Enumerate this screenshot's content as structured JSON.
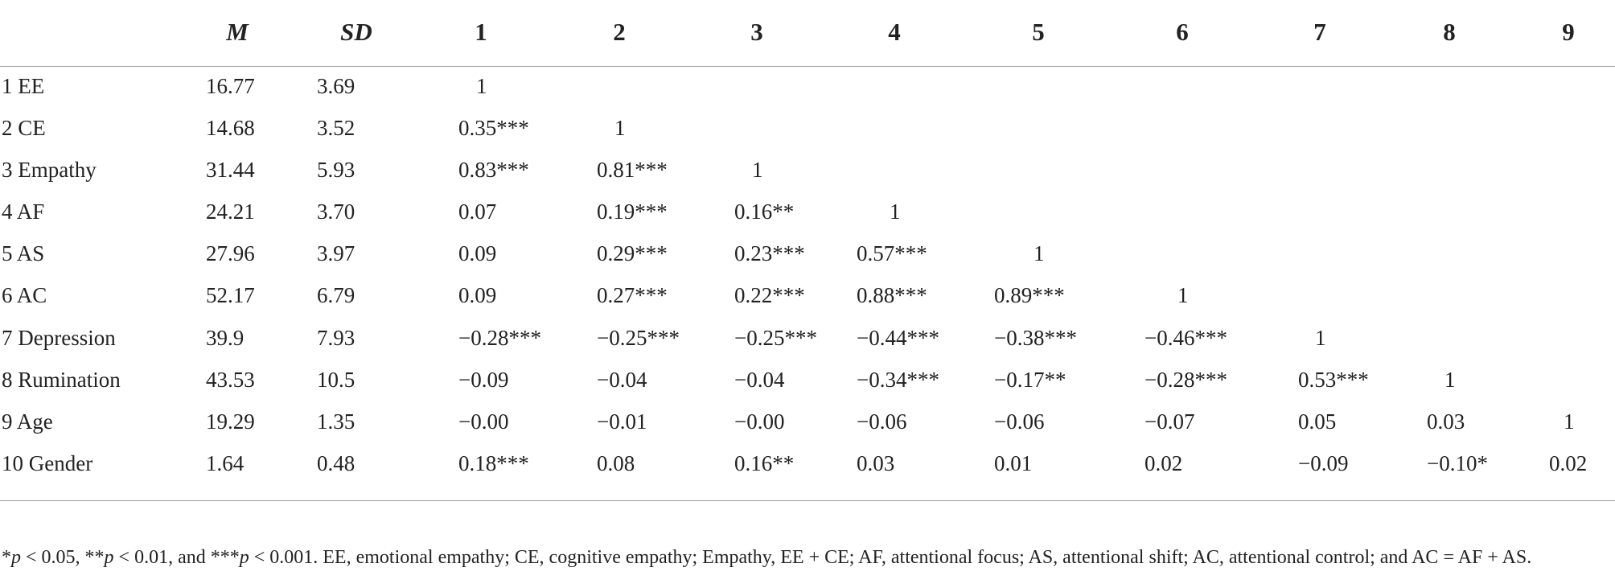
{
  "table": {
    "columns": [
      "M",
      "SD",
      "1",
      "2",
      "3",
      "4",
      "5",
      "6",
      "7",
      "8",
      "9"
    ],
    "rows": [
      {
        "label": "1 EE",
        "cells": [
          "16.77",
          "3.69",
          "1",
          "",
          "",
          "",
          "",
          "",
          "",
          "",
          ""
        ]
      },
      {
        "label": "2 CE",
        "cells": [
          "14.68",
          "3.52",
          "0.35***",
          "1",
          "",
          "",
          "",
          "",
          "",
          "",
          ""
        ]
      },
      {
        "label": "3 Empathy",
        "cells": [
          "31.44",
          "5.93",
          "0.83***",
          "0.81***",
          "1",
          "",
          "",
          "",
          "",
          "",
          ""
        ]
      },
      {
        "label": "4 AF",
        "cells": [
          "24.21",
          "3.70",
          "0.07",
          "0.19***",
          "0.16**",
          "1",
          "",
          "",
          "",
          "",
          ""
        ]
      },
      {
        "label": "5 AS",
        "cells": [
          "27.96",
          "3.97",
          "0.09",
          "0.29***",
          "0.23***",
          "0.57***",
          "1",
          "",
          "",
          "",
          ""
        ]
      },
      {
        "label": "6 AC",
        "cells": [
          "52.17",
          "6.79",
          "0.09",
          "0.27***",
          "0.22***",
          "0.88***",
          "0.89***",
          "1",
          "",
          "",
          ""
        ]
      },
      {
        "label": "7 Depression",
        "cells": [
          "39.9",
          "7.93",
          "−0.28***",
          "−0.25***",
          "−0.25***",
          "−0.44***",
          "−0.38***",
          "−0.46***",
          "1",
          "",
          ""
        ]
      },
      {
        "label": "8 Rumination",
        "cells": [
          "43.53",
          "10.5",
          "−0.09",
          "−0.04",
          "−0.04",
          "−0.34***",
          "−0.17**",
          "−0.28***",
          "0.53***",
          "1",
          ""
        ]
      },
      {
        "label": "9 Age",
        "cells": [
          "19.29",
          "1.35",
          "−0.00",
          "−0.01",
          "−0.00",
          "−0.06",
          "−0.06",
          "−0.07",
          "0.05",
          "0.03",
          "1"
        ]
      },
      {
        "label": "10 Gender",
        "cells": [
          "1.64",
          "0.48",
          "0.18***",
          "0.08",
          "0.16**",
          "0.03",
          "0.01",
          "0.02",
          "−0.09",
          "−0.10*",
          "0.02"
        ]
      }
    ]
  },
  "footnote": {
    "s1": "*",
    "p1": "p",
    "t1": " < 0.05, **",
    "p2": "p",
    "t2": " < 0.01, and ***",
    "p3": "p",
    "t3": " < 0.001. EE, emotional empathy; CE, cognitive empathy; Empathy, EE + CE; AF, attentional focus; AS, attentional shift; AC, attentional control; and AC = AF + AS."
  }
}
